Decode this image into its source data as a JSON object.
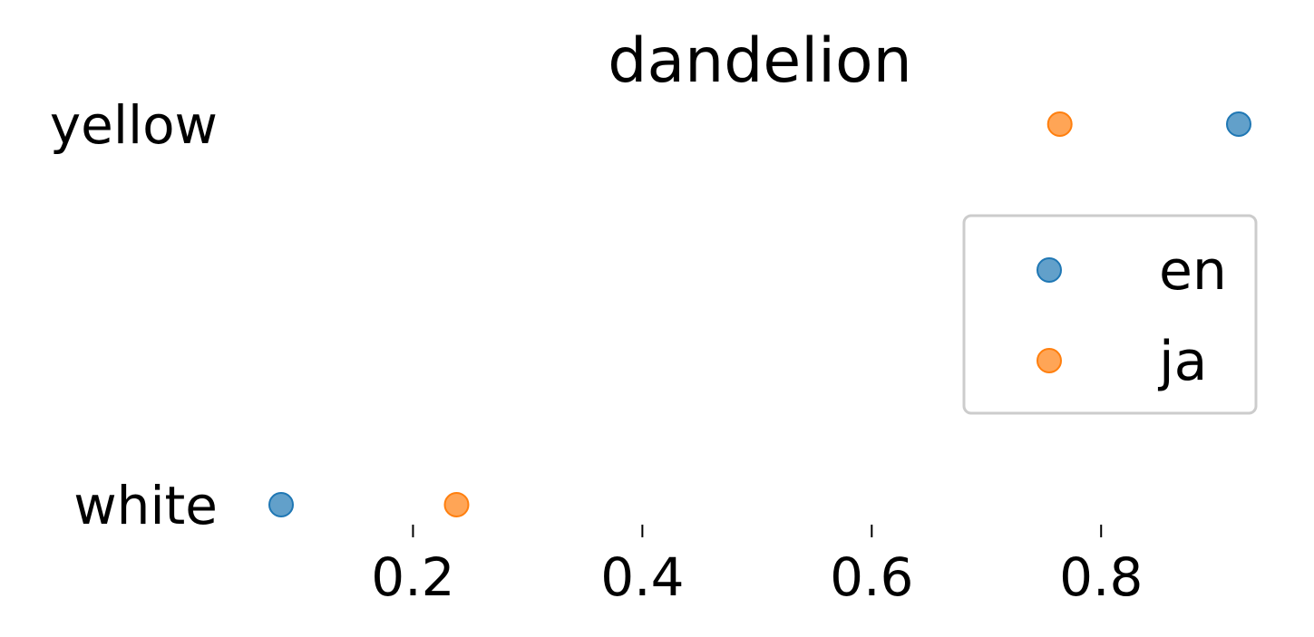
{
  "chart_data": {
    "type": "scatter",
    "title": "dandelion",
    "categories": [
      "yellow",
      "white"
    ],
    "series": [
      {
        "name": "en",
        "color": "#1f77b4",
        "values": [
          0.92,
          0.085
        ]
      },
      {
        "name": "ja",
        "color": "#ff7f0e",
        "values": [
          0.764,
          0.238
        ]
      }
    ],
    "x_ticks": [
      0.2,
      0.4,
      0.6,
      0.8
    ],
    "x_tick_labels": [
      "0.2",
      "0.4",
      "0.6",
      "0.8"
    ],
    "xlim": [
      0.085,
      0.92
    ],
    "xlabel": "",
    "ylabel": "",
    "legend_position": "right",
    "grid": false
  }
}
